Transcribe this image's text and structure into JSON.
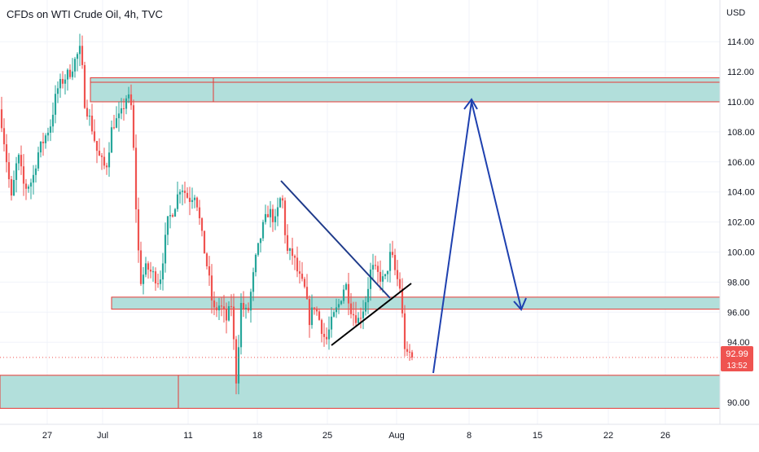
{
  "header": {
    "title": "CFDs on WTI Crude Oil, 4h, TVC"
  },
  "price_axis": {
    "currency": "USD",
    "ticks": [
      "114.00",
      "112.00",
      "110.00",
      "108.00",
      "106.00",
      "104.00",
      "102.00",
      "100.00",
      "98.00",
      "96.00",
      "94.00",
      "90.00"
    ]
  },
  "time_axis": {
    "ticks": [
      "27",
      "Jul",
      "11",
      "18",
      "25",
      "Aug",
      "8",
      "15",
      "22",
      "26"
    ]
  },
  "last_price": {
    "value": "92.99",
    "countdown": "13:52"
  },
  "colors": {
    "up": "#26a69a",
    "down": "#ef5350",
    "zone_fill": "#b2dfdb",
    "zone_border": "#e53935",
    "projection": "#1e40af",
    "trendline": "#000000",
    "triangle_upper": "#1e3a8a",
    "grid": "#f0f3fa",
    "axis_text": "#131722"
  },
  "chart_data": {
    "type": "candlestick",
    "title": "CFDs on WTI Crude Oil, 4h, TVC",
    "ylabel": "USD",
    "ylim": [
      88.9,
      115.2
    ],
    "x_ticks": [
      "27",
      "Jul",
      "11",
      "18",
      "25",
      "Aug",
      "8",
      "15",
      "22",
      "26"
    ],
    "y_ticks": [
      90,
      94,
      96,
      98,
      100,
      102,
      104,
      106,
      108,
      110,
      112,
      114
    ],
    "last_price": 92.99,
    "candles": [],
    "zones": [
      {
        "name": "resistance-zone",
        "from": 110.0,
        "to": 111.6
      },
      {
        "name": "mid-zone",
        "from": 96.2,
        "to": 97.0
      },
      {
        "name": "support-zone",
        "from": 89.6,
        "to": 91.8
      }
    ],
    "grid": true
  }
}
